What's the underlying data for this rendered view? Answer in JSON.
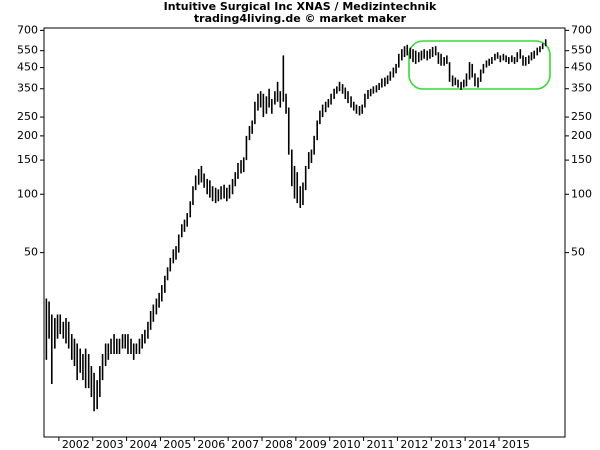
{
  "chart_data": {
    "type": "hilo",
    "title": "Intuitive Surgical Inc XNAS / Medizintechnik",
    "subtitle": "trading4living.de © market maker",
    "color": "#000000",
    "log_y": true,
    "xlim": [
      2001.56,
      2016.95
    ],
    "xticks": [
      2002,
      2003,
      2004,
      2005,
      2006,
      2007,
      2008,
      2009,
      2010,
      2011,
      2012,
      2013,
      2014,
      2015
    ],
    "ylim": [
      5.6,
      720
    ],
    "yticks": [
      50,
      100,
      150,
      200,
      250,
      350,
      450,
      550,
      700
    ],
    "x": [
      2001.63,
      2001.71,
      2001.79,
      2001.88,
      2001.96,
      2002.04,
      2002.13,
      2002.21,
      2002.29,
      2002.38,
      2002.46,
      2002.54,
      2002.63,
      2002.71,
      2002.79,
      2002.88,
      2002.96,
      2003.04,
      2003.13,
      2003.21,
      2003.29,
      2003.38,
      2003.46,
      2003.54,
      2003.63,
      2003.71,
      2003.79,
      2003.88,
      2003.96,
      2004.04,
      2004.13,
      2004.21,
      2004.29,
      2004.38,
      2004.46,
      2004.54,
      2004.63,
      2004.71,
      2004.79,
      2004.88,
      2004.96,
      2005.04,
      2005.13,
      2005.21,
      2005.29,
      2005.38,
      2005.46,
      2005.54,
      2005.63,
      2005.71,
      2005.79,
      2005.88,
      2005.96,
      2006.04,
      2006.13,
      2006.21,
      2006.29,
      2006.38,
      2006.46,
      2006.54,
      2006.63,
      2006.71,
      2006.79,
      2006.88,
      2006.96,
      2007.04,
      2007.13,
      2007.21,
      2007.29,
      2007.38,
      2007.46,
      2007.54,
      2007.63,
      2007.71,
      2007.79,
      2007.88,
      2007.96,
      2008.04,
      2008.13,
      2008.21,
      2008.29,
      2008.38,
      2008.46,
      2008.54,
      2008.63,
      2008.71,
      2008.79,
      2008.88,
      2008.96,
      2009.04,
      2009.13,
      2009.21,
      2009.29,
      2009.38,
      2009.46,
      2009.54,
      2009.63,
      2009.71,
      2009.79,
      2009.88,
      2009.96,
      2010.04,
      2010.13,
      2010.21,
      2010.29,
      2010.38,
      2010.46,
      2010.54,
      2010.63,
      2010.71,
      2010.79,
      2010.88,
      2010.96,
      2011.04,
      2011.13,
      2011.21,
      2011.29,
      2011.38,
      2011.46,
      2011.54,
      2011.63,
      2011.71,
      2011.79,
      2011.88,
      2011.96,
      2012.04,
      2012.13,
      2012.21,
      2012.29,
      2012.38,
      2012.46,
      2012.54,
      2012.63,
      2012.71,
      2012.79,
      2012.88,
      2012.96,
      2013.04,
      2013.13,
      2013.21,
      2013.29,
      2013.38,
      2013.46,
      2013.54,
      2013.63,
      2013.71,
      2013.79,
      2013.88,
      2013.96,
      2014.04,
      2014.13,
      2014.21,
      2014.29,
      2014.38,
      2014.46,
      2014.54,
      2014.63,
      2014.71,
      2014.79,
      2014.88,
      2014.96,
      2015.04,
      2015.13,
      2015.21,
      2015.29,
      2015.38,
      2015.46,
      2015.54,
      2015.63,
      2015.71,
      2015.79,
      2015.88,
      2015.96,
      2016.04,
      2016.13,
      2016.21,
      2016.29,
      2016.38
    ],
    "high": [
      29,
      28,
      24,
      23,
      24,
      24,
      22,
      23,
      22,
      19,
      18,
      17,
      16,
      15,
      16,
      15,
      13,
      12,
      11,
      13,
      15,
      17,
      17,
      18,
      19,
      18,
      18,
      19,
      19,
      19,
      18,
      17,
      17,
      18,
      19,
      20,
      22,
      25,
      27,
      29,
      31,
      34,
      38,
      42,
      47,
      52,
      54,
      62,
      70,
      74,
      80,
      92,
      110,
      125,
      135,
      140,
      128,
      120,
      118,
      110,
      108,
      106,
      110,
      112,
      108,
      112,
      120,
      130,
      145,
      150,
      155,
      200,
      225,
      240,
      300,
      330,
      340,
      330,
      320,
      350,
      310,
      340,
      380,
      340,
      520,
      330,
      280,
      170,
      140,
      130,
      110,
      115,
      140,
      165,
      170,
      200,
      240,
      270,
      290,
      300,
      310,
      330,
      350,
      360,
      380,
      370,
      355,
      340,
      320,
      300,
      290,
      285,
      290,
      330,
      345,
      350,
      360,
      365,
      375,
      395,
      400,
      410,
      430,
      450,
      470,
      530,
      560,
      580,
      590,
      570,
      560,
      550,
      540,
      550,
      560,
      550,
      560,
      575,
      580,
      540,
      530,
      510,
      520,
      480,
      410,
      400,
      390,
      380,
      390,
      420,
      480,
      470,
      420,
      400,
      440,
      470,
      490,
      500,
      510,
      530,
      540,
      520,
      530,
      520,
      510,
      520,
      510,
      540,
      560,
      520,
      510,
      520,
      540,
      550,
      570,
      580,
      600,
      630
    ],
    "low": [
      14,
      18,
      10.5,
      16,
      18,
      19,
      18,
      17,
      16,
      14,
      13,
      11,
      12,
      11,
      10,
      10,
      9,
      7.6,
      7.8,
      9,
      11,
      13,
      14,
      15,
      15,
      15,
      15,
      16,
      16,
      15,
      15,
      14,
      15,
      15,
      16,
      17,
      18,
      20,
      22,
      24,
      26,
      28,
      31,
      36,
      40,
      44,
      46,
      50,
      60,
      64,
      68,
      76,
      88,
      105,
      112,
      115,
      108,
      100,
      96,
      92,
      90,
      92,
      94,
      95,
      92,
      95,
      100,
      110,
      120,
      128,
      130,
      150,
      190,
      205,
      230,
      270,
      280,
      250,
      260,
      280,
      260,
      290,
      300,
      280,
      300,
      260,
      160,
      110,
      95,
      90,
      85,
      88,
      105,
      135,
      145,
      160,
      190,
      230,
      250,
      265,
      280,
      290,
      310,
      330,
      340,
      330,
      310,
      295,
      280,
      270,
      260,
      255,
      260,
      280,
      310,
      320,
      330,
      335,
      345,
      355,
      360,
      370,
      385,
      400,
      420,
      450,
      490,
      510,
      520,
      500,
      480,
      470,
      480,
      490,
      500,
      490,
      500,
      510,
      520,
      470,
      460,
      460,
      470,
      380,
      360,
      365,
      355,
      345,
      355,
      360,
      390,
      400,
      360,
      355,
      380,
      420,
      450,
      460,
      470,
      490,
      500,
      480,
      490,
      480,
      470,
      480,
      470,
      480,
      500,
      460,
      460,
      470,
      490,
      500,
      520,
      540,
      560,
      580
    ]
  }
}
